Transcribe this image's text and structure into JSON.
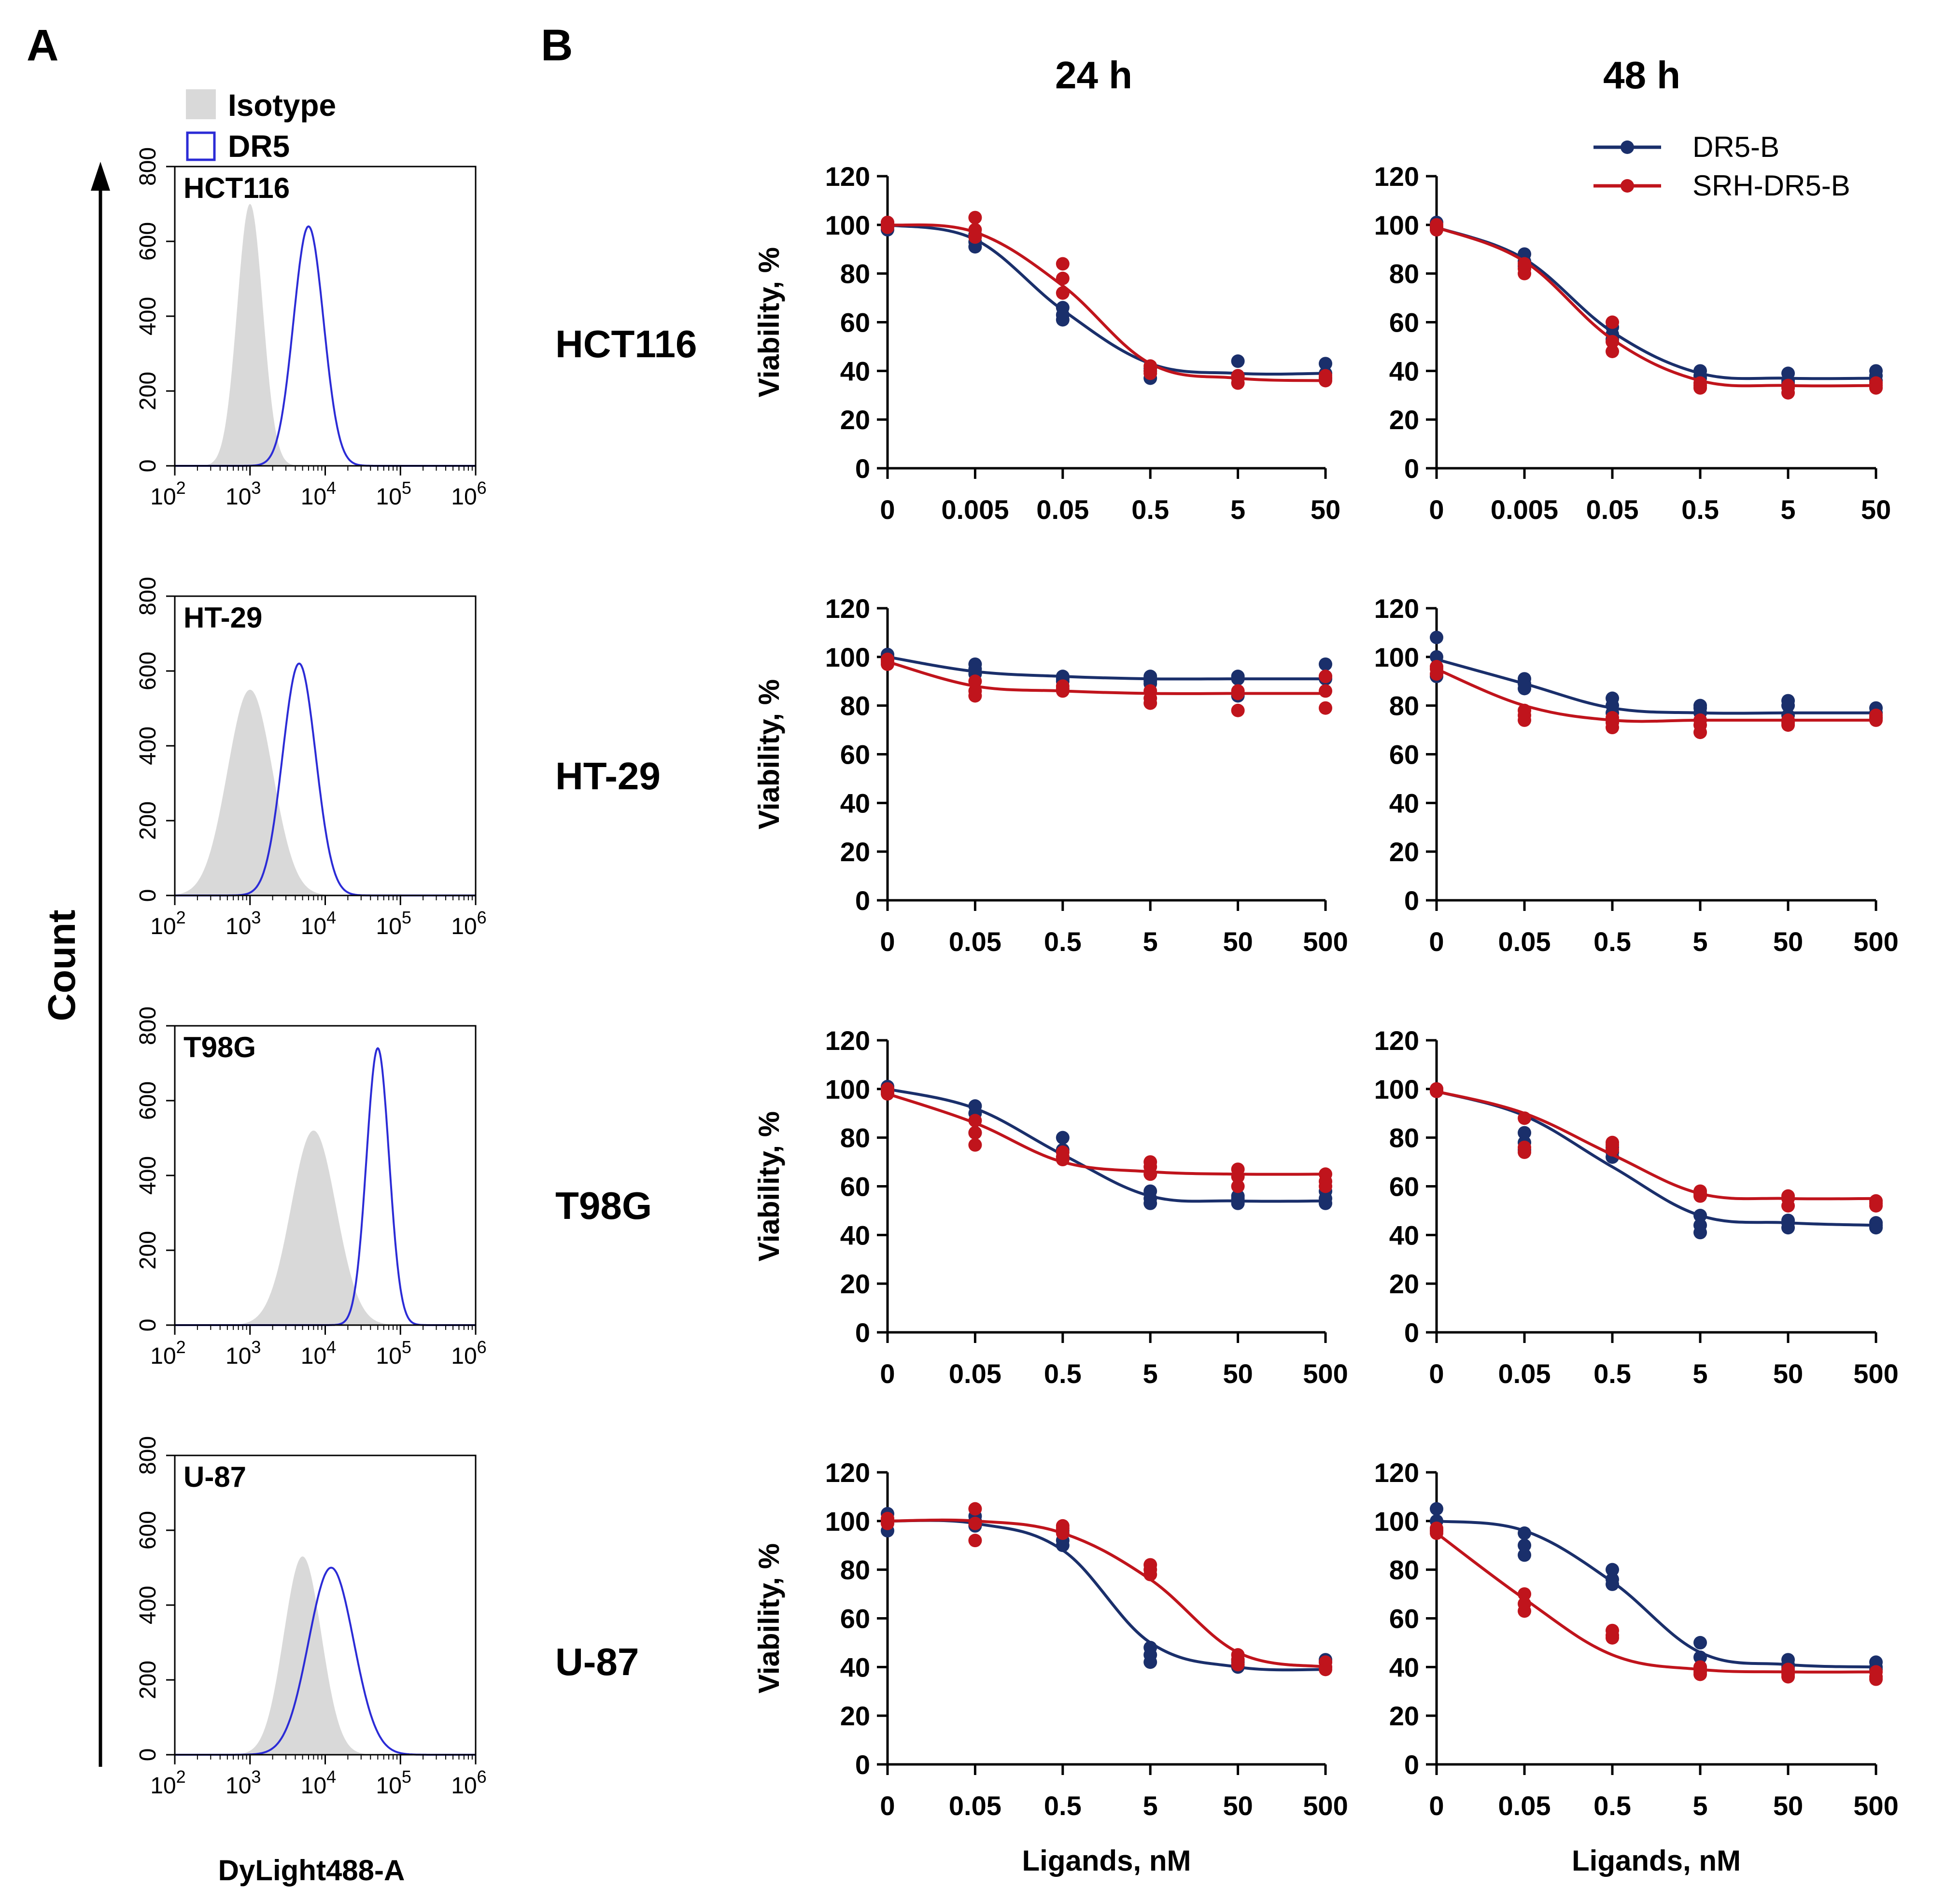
{
  "figure": {
    "panel_a_letter": "A",
    "panel_b_letter": "B",
    "count_axis_title": "Count",
    "flow_xlabel": "DyLight488-A",
    "flow_legend": {
      "isotype": "Isotype",
      "dr5": "DR5"
    },
    "column_titles": [
      "24 h",
      "48 h"
    ],
    "row_labels": [
      "HCT116",
      "HT-29",
      "T98G",
      "U-87"
    ],
    "viability_ylabel": "Viability, %",
    "ligands_xlabel": "Ligands, nM",
    "legend": {
      "dr5b": "DR5-B",
      "srh": "SRH-DR5-B"
    },
    "colors": {
      "dr5b": "#1a2f6b",
      "srh": "#c0141c",
      "isotype": "#d9d9d9",
      "dr5_hist": "#2b2bd6"
    }
  },
  "chart_data": [
    {
      "type": "area",
      "panel": "A",
      "cell_line": "HCT116",
      "xlabel": "DyLight488-A",
      "ylabel": "Count",
      "xscale": "log",
      "xlim": [
        100,
        1000000
      ],
      "ylim": [
        0,
        800
      ],
      "x_ticks": [
        "10^2",
        "10^3",
        "10^4",
        "10^5",
        "10^6"
      ],
      "y_ticks": [
        "0",
        "200",
        "400",
        "600",
        "800"
      ],
      "series": [
        {
          "name": "Isotype",
          "peak_x": 1000,
          "peak_count": 700,
          "log_width": 0.17
        },
        {
          "name": "DR5",
          "peak_x": 6000,
          "peak_count": 640,
          "log_width": 0.2
        }
      ]
    },
    {
      "type": "area",
      "panel": "A",
      "cell_line": "HT-29",
      "xlabel": "DyLight488-A",
      "ylabel": "Count",
      "xscale": "log",
      "xlim": [
        100,
        1000000
      ],
      "ylim": [
        0,
        800
      ],
      "x_ticks": [
        "10^2",
        "10^3",
        "10^4",
        "10^5",
        "10^6"
      ],
      "y_ticks": [
        "0",
        "200",
        "400",
        "600",
        "800"
      ],
      "series": [
        {
          "name": "Isotype",
          "peak_x": 1000,
          "peak_count": 550,
          "log_width": 0.3
        },
        {
          "name": "DR5",
          "peak_x": 4500,
          "peak_count": 620,
          "log_width": 0.22
        }
      ]
    },
    {
      "type": "area",
      "panel": "A",
      "cell_line": "T98G",
      "xlabel": "DyLight488-A",
      "ylabel": "Count",
      "xscale": "log",
      "xlim": [
        100,
        1000000
      ],
      "ylim": [
        0,
        800
      ],
      "x_ticks": [
        "10^2",
        "10^3",
        "10^4",
        "10^5",
        "10^6"
      ],
      "y_ticks": [
        "0",
        "200",
        "400",
        "600",
        "800"
      ],
      "series": [
        {
          "name": "Isotype",
          "peak_x": 7000,
          "peak_count": 520,
          "log_width": 0.3
        },
        {
          "name": "DR5",
          "peak_x": 50000,
          "peak_count": 740,
          "log_width": 0.15
        }
      ]
    },
    {
      "type": "area",
      "panel": "A",
      "cell_line": "U-87",
      "xlabel": "DyLight488-A",
      "ylabel": "Count",
      "xscale": "log",
      "xlim": [
        100,
        1000000
      ],
      "ylim": [
        0,
        800
      ],
      "x_ticks": [
        "10^2",
        "10^3",
        "10^4",
        "10^5",
        "10^6"
      ],
      "y_ticks": [
        "0",
        "200",
        "400",
        "600",
        "800"
      ],
      "series": [
        {
          "name": "Isotype",
          "peak_x": 5000,
          "peak_count": 530,
          "log_width": 0.25
        },
        {
          "name": "DR5",
          "peak_x": 12000,
          "peak_count": 500,
          "log_width": 0.3
        }
      ]
    },
    {
      "type": "scatter",
      "panel": "B",
      "cell_line": "HCT116",
      "time": "24 h",
      "xlabel": "",
      "ylabel": "Viability, %",
      "ylim": [
        0,
        120
      ],
      "y_ticks": [
        "0",
        "20",
        "40",
        "60",
        "80",
        "100",
        "120"
      ],
      "categories": [
        "0",
        "0.005",
        "0.05",
        "0.5",
        "5",
        "50"
      ],
      "series": [
        {
          "name": "DR5-B",
          "points": [
            [
              100,
              101,
              98
            ],
            [
              91,
              93,
              96
            ],
            [
              61,
              63,
              66
            ],
            [
              37,
              40,
              41
            ],
            [
              38,
              38,
              44
            ],
            [
              37,
              39,
              43
            ]
          ],
          "fit": [
            100,
            94,
            65,
            43,
            39,
            39
          ]
        },
        {
          "name": "SRH-DR5-B",
          "points": [
            [
              101,
              99,
              100
            ],
            [
              103,
              98,
              95
            ],
            [
              84,
              78,
              72
            ],
            [
              39,
              40,
              42
            ],
            [
              35,
              37,
              38
            ],
            [
              36,
              37,
              38
            ]
          ],
          "fit": [
            100,
            97,
            75,
            43,
            37,
            36
          ]
        }
      ]
    },
    {
      "type": "scatter",
      "panel": "B",
      "cell_line": "HCT116",
      "time": "48 h",
      "xlabel": "",
      "ylabel": "",
      "ylim": [
        0,
        120
      ],
      "y_ticks": [
        "0",
        "20",
        "40",
        "60",
        "80",
        "100",
        "120"
      ],
      "categories": [
        "0",
        "0.005",
        "0.05",
        "0.5",
        "5",
        "50"
      ],
      "series": [
        {
          "name": "DR5-B",
          "points": [
            [
              101,
              99,
              98
            ],
            [
              88,
              85,
              83
            ],
            [
              58,
              55,
              53
            ],
            [
              40,
              38,
              37
            ],
            [
              39,
              36,
              35
            ],
            [
              40,
              38,
              36
            ]
          ],
          "fit": [
            99,
            86,
            56,
            39,
            37,
            37
          ]
        },
        {
          "name": "SRH-DR5-B",
          "points": [
            [
              100,
              98,
              99
            ],
            [
              80,
              82,
              84
            ],
            [
              60,
              52,
              48
            ],
            [
              33,
              35,
              34
            ],
            [
              31,
              33,
              34
            ],
            [
              33,
              34,
              35
            ]
          ],
          "fit": [
            99,
            85,
            53,
            36,
            34,
            34
          ]
        }
      ]
    },
    {
      "type": "scatter",
      "panel": "B",
      "cell_line": "HT-29",
      "time": "24 h",
      "xlabel": "",
      "ylabel": "Viability, %",
      "ylim": [
        0,
        120
      ],
      "y_ticks": [
        "0",
        "20",
        "40",
        "60",
        "80",
        "100",
        "120"
      ],
      "categories": [
        "0",
        "0.05",
        "0.5",
        "5",
        "50",
        "500"
      ],
      "series": [
        {
          "name": "DR5-B",
          "points": [
            [
              101,
              99,
              100
            ],
            [
              97,
              95,
              93
            ],
            [
              92,
              91,
              90
            ],
            [
              92,
              90,
              89
            ],
            [
              92,
              84,
              91
            ],
            [
              97,
              92,
              91
            ]
          ],
          "fit": [
            100,
            94,
            92,
            91,
            91,
            91
          ]
        },
        {
          "name": "SRH-DR5-B",
          "points": [
            [
              98,
              99,
              97
            ],
            [
              90,
              86,
              84
            ],
            [
              86,
              87,
              88
            ],
            [
              83,
              81,
              86
            ],
            [
              78,
              86,
              85
            ],
            [
              79,
              92,
              86
            ]
          ],
          "fit": [
            98,
            88,
            86,
            85,
            85,
            85
          ]
        }
      ]
    },
    {
      "type": "scatter",
      "panel": "B",
      "cell_line": "HT-29",
      "time": "48 h",
      "xlabel": "",
      "ylabel": "",
      "ylim": [
        0,
        120
      ],
      "y_ticks": [
        "0",
        "20",
        "40",
        "60",
        "80",
        "100",
        "120"
      ],
      "categories": [
        "0",
        "0.05",
        "0.5",
        "5",
        "50",
        "500"
      ],
      "series": [
        {
          "name": "DR5-B",
          "points": [
            [
              108,
              100,
              92
            ],
            [
              91,
              89,
              87
            ],
            [
              83,
              80,
              77
            ],
            [
              80,
              79,
              77
            ],
            [
              82,
              80,
              76
            ],
            [
              79,
              77,
              75
            ]
          ],
          "fit": [
            99,
            89,
            79,
            77,
            77,
            77
          ]
        },
        {
          "name": "SRH-DR5-B",
          "points": [
            [
              96,
              93,
              95
            ],
            [
              76,
              74,
              78
            ],
            [
              71,
              73,
              75
            ],
            [
              69,
              72,
              74
            ],
            [
              72,
              74,
              73
            ],
            [
              74,
              75,
              76
            ]
          ],
          "fit": [
            95,
            80,
            74,
            74,
            74,
            74
          ]
        }
      ]
    },
    {
      "type": "scatter",
      "panel": "B",
      "cell_line": "T98G",
      "time": "24 h",
      "xlabel": "",
      "ylabel": "Viability, %",
      "ylim": [
        0,
        120
      ],
      "y_ticks": [
        "0",
        "20",
        "40",
        "60",
        "80",
        "100",
        "120"
      ],
      "categories": [
        "0",
        "0.05",
        "0.5",
        "5",
        "50",
        "500"
      ],
      "series": [
        {
          "name": "DR5-B",
          "points": [
            [
              101,
              99,
              100
            ],
            [
              93,
              90,
              82
            ],
            [
              80,
              75,
              72
            ],
            [
              53,
              55,
              58
            ],
            [
              53,
              55,
              56
            ],
            [
              53,
              55,
              58
            ]
          ],
          "fit": [
            100,
            92,
            73,
            56,
            54,
            54
          ]
        },
        {
          "name": "SRH-DR5-B",
          "points": [
            [
              98,
              99,
              100
            ],
            [
              87,
              77,
              82
            ],
            [
              74,
              71,
              72
            ],
            [
              70,
              65,
              68
            ],
            [
              67,
              60,
              64
            ],
            [
              65,
              62,
              60
            ]
          ],
          "fit": [
            98,
            86,
            70,
            66,
            65,
            65
          ]
        }
      ]
    },
    {
      "type": "scatter",
      "panel": "B",
      "cell_line": "T98G",
      "time": "48 h",
      "xlabel": "",
      "ylabel": "",
      "ylim": [
        0,
        120
      ],
      "y_ticks": [
        "0",
        "20",
        "40",
        "60",
        "80",
        "100",
        "120"
      ],
      "categories": [
        "0",
        "0.05",
        "0.5",
        "5",
        "50",
        "500"
      ],
      "series": [
        {
          "name": "DR5-B",
          "points": [
            [
              100,
              100,
              99
            ],
            [
              82,
              78,
              75
            ],
            [
              76,
              74,
              72
            ],
            [
              48,
              44,
              41
            ],
            [
              46,
              43,
              45
            ],
            [
              45,
              43,
              44
            ]
          ],
          "fit": [
            99,
            89,
            68,
            48,
            45,
            44
          ]
        },
        {
          "name": "SRH-DR5-B",
          "points": [
            [
              100,
              99,
              100
            ],
            [
              88,
              74,
              76
            ],
            [
              78,
              77,
              75
            ],
            [
              58,
              56,
              57
            ],
            [
              56,
              52,
              55
            ],
            [
              53,
              52,
              54
            ]
          ],
          "fit": [
            99,
            90,
            73,
            57,
            55,
            55
          ]
        }
      ]
    },
    {
      "type": "scatter",
      "panel": "B",
      "cell_line": "U-87",
      "time": "24 h",
      "xlabel": "Ligands, nM",
      "ylabel": "Viability, %",
      "ylim": [
        0,
        120
      ],
      "y_ticks": [
        "0",
        "20",
        "40",
        "60",
        "80",
        "100",
        "120"
      ],
      "categories": [
        "0",
        "0.05",
        "0.5",
        "5",
        "50",
        "500"
      ],
      "series": [
        {
          "name": "DR5-B",
          "points": [
            [
              103,
              100,
              96
            ],
            [
              102,
              100,
              98
            ],
            [
              96,
              92,
              90
            ],
            [
              48,
              42,
              45
            ],
            [
              40,
              42,
              43
            ],
            [
              40,
              42,
              43
            ]
          ],
          "fit": [
            100,
            99,
            88,
            50,
            40,
            39
          ]
        },
        {
          "name": "SRH-DR5-B",
          "points": [
            [
              101,
              99,
              100
            ],
            [
              105,
              92,
              99
            ],
            [
              98,
              95,
              97
            ],
            [
              82,
              80,
              78
            ],
            [
              45,
              43,
              41
            ],
            [
              42,
              40,
              39
            ]
          ],
          "fit": [
            100,
            100,
            95,
            76,
            46,
            40
          ]
        }
      ]
    },
    {
      "type": "scatter",
      "panel": "B",
      "cell_line": "U-87",
      "time": "48 h",
      "xlabel": "Ligands, nM",
      "ylabel": "",
      "ylim": [
        0,
        120
      ],
      "y_ticks": [
        "0",
        "20",
        "40",
        "60",
        "80",
        "100",
        "120"
      ],
      "categories": [
        "0",
        "0.05",
        "0.5",
        "5",
        "50",
        "500"
      ],
      "series": [
        {
          "name": "DR5-B",
          "points": [
            [
              105,
              100,
              96
            ],
            [
              95,
              90,
              86
            ],
            [
              80,
              76,
              74
            ],
            [
              50,
              44,
              40
            ],
            [
              43,
              41,
              40
            ],
            [
              42,
              40,
              39
            ]
          ],
          "fit": [
            100,
            96,
            75,
            46,
            41,
            40
          ]
        },
        {
          "name": "SRH-DR5-B",
          "points": [
            [
              97,
              95,
              96
            ],
            [
              70,
              66,
              63
            ],
            [
              55,
              53,
              52
            ],
            [
              40,
              38,
              37
            ],
            [
              39,
              37,
              36
            ],
            [
              38,
              36,
              35
            ]
          ],
          "fit": [
            95,
            68,
            45,
            39,
            38,
            38
          ]
        }
      ]
    }
  ]
}
